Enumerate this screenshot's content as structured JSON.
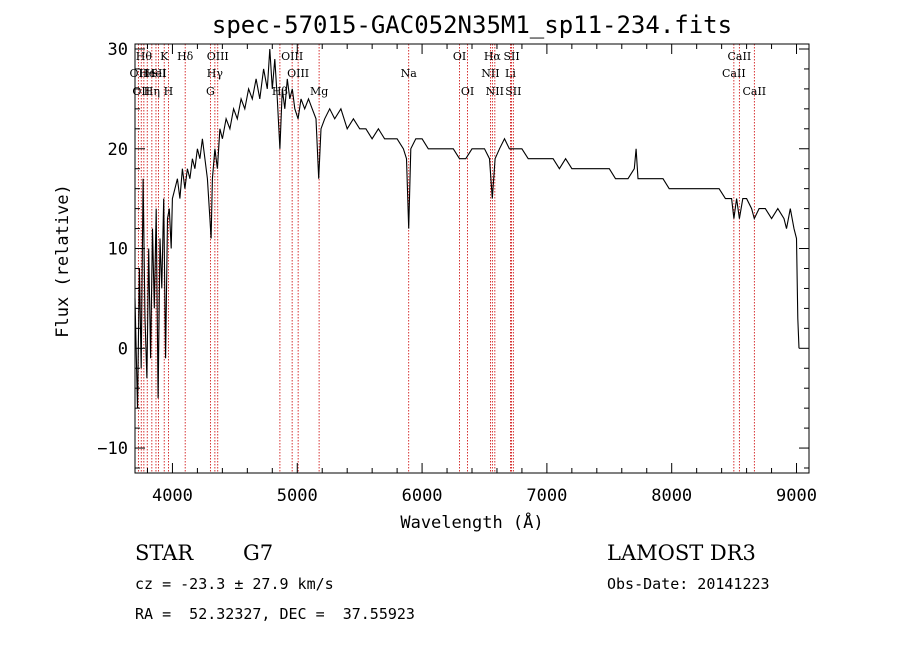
{
  "chart_data": {
    "type": "line",
    "title": "spec-57015-GAC052N35M1_sp11-234.fits",
    "xlabel": "Wavelength (Å)",
    "ylabel": "Flux (relative)",
    "xlim": [
      3700,
      9100
    ],
    "ylim": [
      -12.5,
      30.5
    ],
    "xticks": [
      4000,
      5000,
      6000,
      7000,
      8000,
      9000
    ],
    "yticks": [
      -10,
      0,
      10,
      20,
      30
    ],
    "series": [
      {
        "name": "flux",
        "points": [
          [
            3700,
            5
          ],
          [
            3720,
            -6
          ],
          [
            3735,
            8
          ],
          [
            3750,
            -2
          ],
          [
            3765,
            17
          ],
          [
            3780,
            3
          ],
          [
            3795,
            -3
          ],
          [
            3810,
            10
          ],
          [
            3825,
            -1
          ],
          [
            3840,
            12
          ],
          [
            3855,
            4
          ],
          [
            3870,
            14
          ],
          [
            3885,
            -5
          ],
          [
            3900,
            11
          ],
          [
            3915,
            6
          ],
          [
            3930,
            15
          ],
          [
            3945,
            -1
          ],
          [
            3960,
            13
          ],
          [
            3975,
            14
          ],
          [
            3990,
            10
          ],
          [
            4000,
            15
          ],
          [
            4020,
            16
          ],
          [
            4040,
            17
          ],
          [
            4060,
            15
          ],
          [
            4080,
            18
          ],
          [
            4100,
            16
          ],
          [
            4120,
            18
          ],
          [
            4140,
            17
          ],
          [
            4160,
            19
          ],
          [
            4180,
            18
          ],
          [
            4200,
            20
          ],
          [
            4220,
            19
          ],
          [
            4240,
            21
          ],
          [
            4260,
            19
          ],
          [
            4280,
            17
          ],
          [
            4300,
            13
          ],
          [
            4310,
            11
          ],
          [
            4320,
            17
          ],
          [
            4340,
            20
          ],
          [
            4360,
            18
          ],
          [
            4380,
            22
          ],
          [
            4400,
            21
          ],
          [
            4430,
            23
          ],
          [
            4460,
            22
          ],
          [
            4490,
            24
          ],
          [
            4520,
            23
          ],
          [
            4550,
            25
          ],
          [
            4580,
            24
          ],
          [
            4610,
            26
          ],
          [
            4640,
            25
          ],
          [
            4670,
            27
          ],
          [
            4700,
            25
          ],
          [
            4730,
            28
          ],
          [
            4760,
            26
          ],
          [
            4780,
            30
          ],
          [
            4800,
            26
          ],
          [
            4820,
            29
          ],
          [
            4840,
            25
          ],
          [
            4861,
            20
          ],
          [
            4880,
            26
          ],
          [
            4900,
            24
          ],
          [
            4920,
            27
          ],
          [
            4940,
            25
          ],
          [
            4960,
            26
          ],
          [
            4980,
            24
          ],
          [
            5007,
            23
          ],
          [
            5030,
            25
          ],
          [
            5060,
            24
          ],
          [
            5090,
            25
          ],
          [
            5120,
            24
          ],
          [
            5150,
            23
          ],
          [
            5172,
            17
          ],
          [
            5190,
            22
          ],
          [
            5220,
            23
          ],
          [
            5260,
            24
          ],
          [
            5300,
            23
          ],
          [
            5350,
            24
          ],
          [
            5400,
            22
          ],
          [
            5450,
            23
          ],
          [
            5500,
            22
          ],
          [
            5550,
            22
          ],
          [
            5600,
            21
          ],
          [
            5650,
            22
          ],
          [
            5700,
            21
          ],
          [
            5750,
            21
          ],
          [
            5800,
            21
          ],
          [
            5850,
            20
          ],
          [
            5875,
            19
          ],
          [
            5893,
            12
          ],
          [
            5910,
            20
          ],
          [
            5950,
            21
          ],
          [
            6000,
            21
          ],
          [
            6050,
            20
          ],
          [
            6100,
            20
          ],
          [
            6150,
            20
          ],
          [
            6200,
            20
          ],
          [
            6250,
            20
          ],
          [
            6300,
            19
          ],
          [
            6350,
            19
          ],
          [
            6400,
            20
          ],
          [
            6450,
            20
          ],
          [
            6500,
            20
          ],
          [
            6540,
            19
          ],
          [
            6563,
            15
          ],
          [
            6585,
            19
          ],
          [
            6620,
            20
          ],
          [
            6660,
            21
          ],
          [
            6700,
            20
          ],
          [
            6750,
            20
          ],
          [
            6800,
            20
          ],
          [
            6850,
            19
          ],
          [
            6900,
            19
          ],
          [
            6950,
            19
          ],
          [
            7000,
            19
          ],
          [
            7050,
            19
          ],
          [
            7100,
            18
          ],
          [
            7150,
            19
          ],
          [
            7200,
            18
          ],
          [
            7250,
            18
          ],
          [
            7300,
            18
          ],
          [
            7350,
            18
          ],
          [
            7400,
            18
          ],
          [
            7450,
            18
          ],
          [
            7500,
            18
          ],
          [
            7550,
            17
          ],
          [
            7600,
            17
          ],
          [
            7650,
            17
          ],
          [
            7700,
            18
          ],
          [
            7715,
            20
          ],
          [
            7730,
            17
          ],
          [
            7780,
            17
          ],
          [
            7830,
            17
          ],
          [
            7880,
            17
          ],
          [
            7930,
            17
          ],
          [
            7980,
            16
          ],
          [
            8030,
            16
          ],
          [
            8080,
            16
          ],
          [
            8130,
            16
          ],
          [
            8180,
            16
          ],
          [
            8230,
            16
          ],
          [
            8280,
            16
          ],
          [
            8330,
            16
          ],
          [
            8380,
            16
          ],
          [
            8430,
            15
          ],
          [
            8480,
            15
          ],
          [
            8498,
            13
          ],
          [
            8520,
            15
          ],
          [
            8542,
            13
          ],
          [
            8570,
            15
          ],
          [
            8600,
            15
          ],
          [
            8640,
            14
          ],
          [
            8662,
            13
          ],
          [
            8700,
            14
          ],
          [
            8750,
            14
          ],
          [
            8800,
            13
          ],
          [
            8850,
            14
          ],
          [
            8900,
            13
          ],
          [
            8920,
            12
          ],
          [
            8950,
            14
          ],
          [
            8980,
            12
          ],
          [
            9000,
            11
          ],
          [
            9010,
            3
          ],
          [
            9020,
            0
          ]
        ]
      }
    ],
    "line_markers": [
      {
        "wl": 3727,
        "label": "OII",
        "row": 2
      },
      {
        "wl": 3750,
        "label": "OII",
        "row": 3
      },
      {
        "wl": 3771,
        "label": "Hθ",
        "row": 1
      },
      {
        "wl": 3798,
        "label": "He",
        "row": 2
      },
      {
        "wl": 3835,
        "label": "Hη",
        "row": 3
      },
      {
        "wl": 3868,
        "label": "HeI",
        "row": 2
      },
      {
        "wl": 3889,
        "label": "SII",
        "row": 2
      },
      {
        "wl": 3934,
        "label": "K",
        "row": 1
      },
      {
        "wl": 3968,
        "label": "H",
        "row": 3
      },
      {
        "wl": 4102,
        "label": "Hδ",
        "row": 1
      },
      {
        "wl": 4304,
        "label": "G",
        "row": 3
      },
      {
        "wl": 4340,
        "label": "Hγ",
        "row": 2
      },
      {
        "wl": 4363,
        "label": "OIII",
        "row": 1
      },
      {
        "wl": 4861,
        "label": "Hβ",
        "row": 3
      },
      {
        "wl": 4959,
        "label": "OIII",
        "row": 1
      },
      {
        "wl": 5007,
        "label": "OIII",
        "row": 2
      },
      {
        "wl": 5175,
        "label": "Mg",
        "row": 3
      },
      {
        "wl": 5893,
        "label": "Na",
        "row": 2
      },
      {
        "wl": 6300,
        "label": "OI",
        "row": 1
      },
      {
        "wl": 6364,
        "label": "OI",
        "row": 3
      },
      {
        "wl": 6548,
        "label": "NII",
        "row": 2
      },
      {
        "wl": 6563,
        "label": "Hα",
        "row": 1
      },
      {
        "wl": 6583,
        "label": "NII",
        "row": 3
      },
      {
        "wl": 6708,
        "label": "Li",
        "row": 2
      },
      {
        "wl": 6717,
        "label": "SII",
        "row": 1
      },
      {
        "wl": 6731,
        "label": "SII",
        "row": 3
      },
      {
        "wl": 8498,
        "label": "CaII",
        "row": 2
      },
      {
        "wl": 8542,
        "label": "CaII",
        "row": 1
      },
      {
        "wl": 8662,
        "label": "CaII",
        "row": 3
      }
    ]
  },
  "info": {
    "object_type": "STAR",
    "subclass": "G7",
    "survey": "LAMOST DR3",
    "cz": "cz = -23.3 ± 27.9 km/s",
    "obs_date": "Obs-Date: 20141223",
    "coords": "RA =  52.32327, DEC =  37.55923"
  },
  "colors": {
    "line_marker": "#cc0000",
    "spectrum": "#000000"
  }
}
